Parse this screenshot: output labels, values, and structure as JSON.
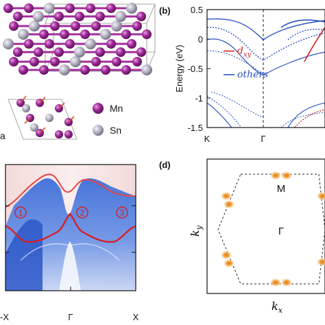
{
  "panels": {
    "a": {
      "legend": [
        {
          "symbol": "Mn",
          "color": "#9b2a96"
        },
        {
          "symbol": "Sn",
          "color": "#a9a6b8"
        }
      ],
      "axis_letter": "a"
    },
    "b": {
      "label": "(b)"
    },
    "c": {
      "tick_labels": [
        "-X",
        "Γ",
        "X"
      ],
      "markers": [
        "1",
        "2",
        "3"
      ],
      "marker_color": "#d42026"
    },
    "d": {
      "label": "(d)",
      "points": [
        "M",
        "Γ"
      ],
      "xlabel_base": "k",
      "xlabel_sub": "x",
      "ylabel_base": "k",
      "ylabel_sub": "y"
    }
  },
  "chart_data": [
    {
      "type": "line",
      "panel": "b",
      "ylabel": "Energy (eV)",
      "ylim": [
        -1.5,
        0.5
      ],
      "yticks": [
        0.5,
        0,
        -0.5,
        -1,
        -1.5
      ],
      "ytick_labels": [
        "0.5",
        "0",
        "-0.5",
        "-1",
        "-1.5"
      ],
      "x_ticks": [
        "K",
        "Γ"
      ],
      "legend": {
        "placement": "left",
        "entries": [
          {
            "base": "d",
            "sub": "xy",
            "color": "#d42026"
          },
          {
            "base": "others",
            "sub": "",
            "color": "#2a52be"
          }
        ]
      },
      "vline_at": "Γ"
    }
  ]
}
